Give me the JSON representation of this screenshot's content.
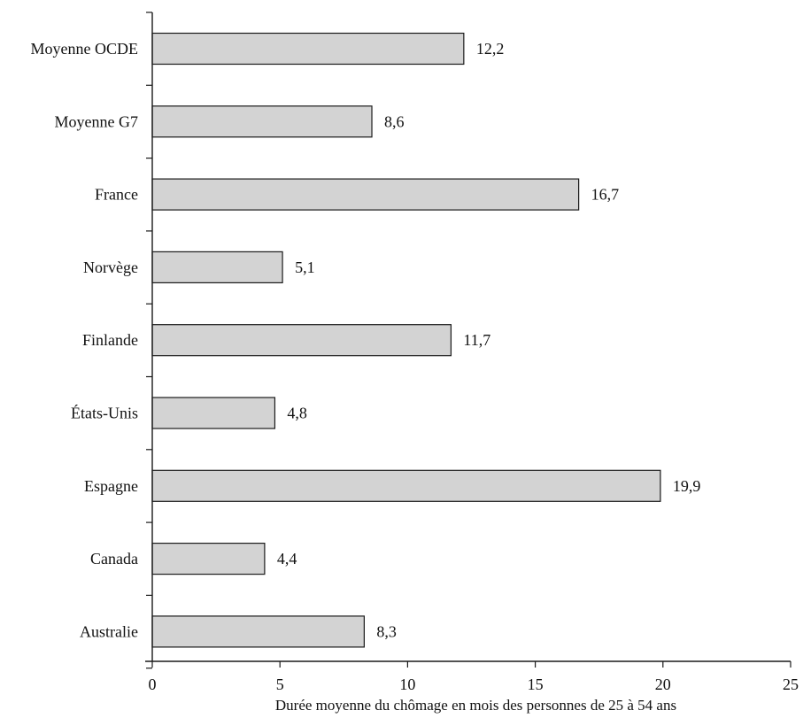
{
  "chart_data": {
    "type": "bar",
    "orientation": "horizontal",
    "categories": [
      "Moyenne OCDE",
      "Moyenne G7",
      "France",
      "Norvège",
      "Finlande",
      "États-Unis",
      "Espagne",
      "Canada",
      "Australie"
    ],
    "values": [
      12.2,
      8.6,
      16.7,
      5.1,
      11.7,
      4.8,
      19.9,
      4.4,
      8.3
    ],
    "value_labels": [
      "12,2",
      "8,6",
      "16,7",
      "5,1",
      "11,7",
      "4,8",
      "19,9",
      "4,4",
      "8,3"
    ],
    "xlabel": "Durée moyenne du chômage en mois des personnes de 25 à 54 ans",
    "ylabel": "",
    "xlim": [
      0,
      25
    ],
    "x_ticks": [
      0,
      5,
      10,
      15,
      20,
      25
    ],
    "x_tick_labels": [
      "0",
      "5",
      "10",
      "15",
      "20",
      "25"
    ],
    "colors": {
      "bar_fill": "#d3d3d3",
      "bar_stroke": "#1a1a1a",
      "axis": "#1a1a1a",
      "text": "#111111"
    },
    "grid": false,
    "legend": "none"
  }
}
